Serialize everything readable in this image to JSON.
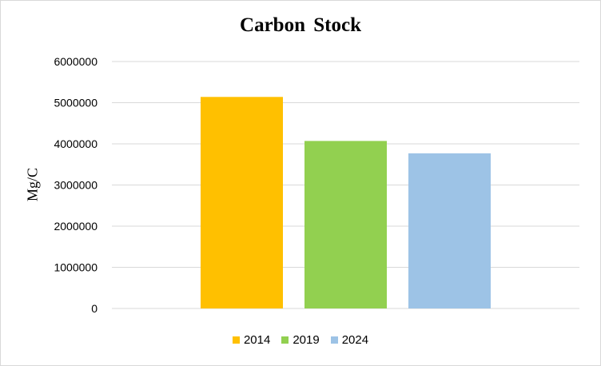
{
  "chart_data": {
    "type": "bar",
    "title": "Carbon Stock",
    "xlabel": "",
    "ylabel": "Mg/C",
    "ylim": [
      0,
      6000000
    ],
    "yticks": [
      "0",
      "1000000",
      "2000000",
      "3000000",
      "4000000",
      "5000000",
      "6000000"
    ],
    "grid": true,
    "legend_position": "bottom",
    "series": [
      {
        "name": "2014",
        "value": 5140000,
        "color": "#FFC000"
      },
      {
        "name": "2019",
        "value": 4070000,
        "color": "#92D050"
      },
      {
        "name": "2024",
        "value": 3770000,
        "color": "#9DC3E6"
      }
    ]
  }
}
